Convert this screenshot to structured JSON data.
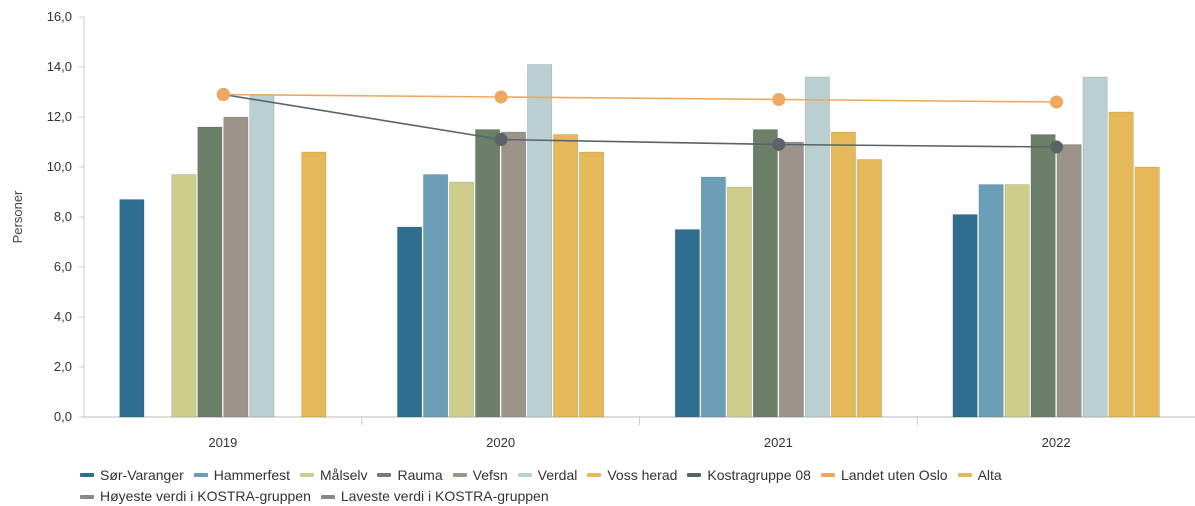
{
  "chart_data": {
    "type": "bar",
    "ylabel": "Personer",
    "ylim": [
      0,
      16
    ],
    "yticks": [
      "0,0",
      "2,0",
      "4,0",
      "6,0",
      "8,0",
      "10,0",
      "12,0",
      "14,0",
      "16,0"
    ],
    "categories": [
      "2019",
      "2020",
      "2021",
      "2022"
    ],
    "series": [
      {
        "name": "Sør-Varanger",
        "color": "#2e6f8f",
        "values": [
          8.7,
          7.6,
          7.5,
          8.1
        ]
      },
      {
        "name": "Hammerfest",
        "color": "#6b9fb8",
        "values": [
          null,
          9.7,
          9.6,
          9.3
        ]
      },
      {
        "name": "Målselv",
        "color": "#cfcd8c",
        "values": [
          9.7,
          9.4,
          9.2,
          9.3
        ]
      },
      {
        "name": "Rauma",
        "color": "#6b7f69",
        "values": [
          11.6,
          11.5,
          11.5,
          11.3
        ]
      },
      {
        "name": "Vefsn",
        "color": "#9c948a",
        "values": [
          12.0,
          11.4,
          11.0,
          10.9
        ]
      },
      {
        "name": "Verdal",
        "color": "#b9cfd1",
        "values": [
          12.9,
          14.1,
          13.6,
          13.6
        ]
      },
      {
        "name": "Voss herad",
        "color": "#e5b95a",
        "values": [
          null,
          11.3,
          11.4,
          12.2
        ]
      },
      {
        "name": "Alta",
        "color": "#e5b95a",
        "values": [
          10.6,
          10.6,
          10.3,
          10.0
        ]
      }
    ],
    "lines": [
      {
        "name": "Kostragruppe 08",
        "color": "#586468",
        "values": [
          12.9,
          11.1,
          10.9,
          10.8
        ]
      },
      {
        "name": "Landet uten Oslo",
        "color": "#f0a860",
        "values": [
          12.9,
          12.8,
          12.7,
          12.6
        ]
      }
    ],
    "legend": [
      {
        "name": "Sør-Varanger",
        "color": "#2e6f8f"
      },
      {
        "name": "Hammerfest",
        "color": "#6b9fb8"
      },
      {
        "name": "Målselv",
        "color": "#cfcd8c"
      },
      {
        "name": "Rauma",
        "color": "#6b7f69"
      },
      {
        "name": "Vefsn",
        "color": "#9c948a"
      },
      {
        "name": "Verdal",
        "color": "#b9cfd1"
      },
      {
        "name": "Voss herad",
        "color": "#e5b95a"
      },
      {
        "name": "Kostragruppe 08",
        "color": "#586468"
      },
      {
        "name": "Landet uten Oslo",
        "color": "#f0a860"
      },
      {
        "name": "Alta",
        "color": "#e5b95a"
      },
      {
        "name": "Høyeste verdi i KOSTRA-gruppen",
        "color": "#888888"
      },
      {
        "name": "Laveste verdi i KOSTRA-gruppen",
        "color": "#888888"
      }
    ],
    "legend_position": "bottom",
    "grid": false
  }
}
